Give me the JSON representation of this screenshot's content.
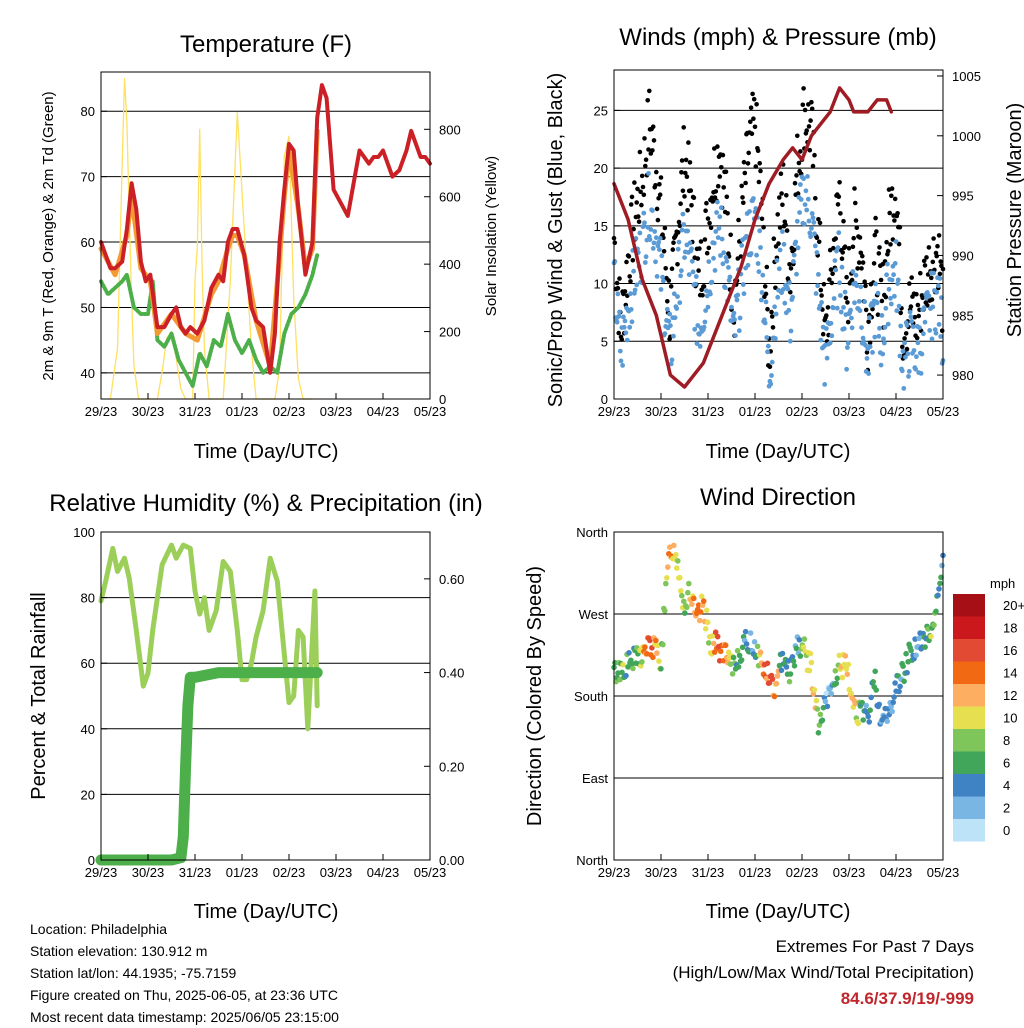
{
  "colors": {
    "temp2m": "#cc2027",
    "temp9m": "#f49a35",
    "dewpoint": "#4daf4a",
    "insolation": "#ffe060",
    "gust": "#000000",
    "wind": "#5b9bd5",
    "pressure": "#a01c24",
    "rh": "#9ccf5a",
    "precip": "#4daf4a",
    "extremes": "#c0262c"
  },
  "time_ticks": [
    "29/23",
    "30/23",
    "31/23",
    "01/23",
    "02/23",
    "03/23",
    "04/23",
    "05/23"
  ],
  "panels": {
    "temperature": {
      "title": "Temperature (F)",
      "xlabel": "Time (Day/UTC)",
      "ylabel_left": "2m & 9m T (Red, Orange) & 2m Td (Green)",
      "ylabel_right": "Solar Insolation (Yellow)",
      "left_ticks": [
        "40",
        "50",
        "60",
        "70",
        "80"
      ],
      "right_ticks": [
        "0",
        "200",
        "400",
        "600",
        "800"
      ]
    },
    "winds": {
      "title": "Winds (mph) & Pressure (mb)",
      "xlabel": "Time (Day/UTC)",
      "ylabel_left": "Sonic/Prop Wind & Gust (Blue, Black)",
      "ylabel_right": "Station Pressure (Maroon)",
      "left_ticks": [
        "0",
        "5",
        "10",
        "15",
        "20",
        "25"
      ],
      "right_ticks": [
        "980",
        "985",
        "990",
        "995",
        "1000",
        "1005"
      ]
    },
    "humidity": {
      "title": "Relative Humidity (%) & Precipitation (in)",
      "xlabel": "Time (Day/UTC)",
      "ylabel_left": "Percent & Total Rainfall",
      "left_ticks": [
        "0",
        "20",
        "40",
        "60",
        "80",
        "100"
      ],
      "right_ticks": [
        "0.00",
        "0.20",
        "0.40",
        "0.60"
      ]
    },
    "direction": {
      "title": "Wind Direction",
      "xlabel": "Time (Day/UTC)",
      "ylabel_left": "Direction (Colored By Speed)",
      "left_ticks": [
        "North",
        "East",
        "South",
        "West",
        "North"
      ],
      "legend_title": "mph",
      "legend_labels": [
        "20+",
        "18",
        "16",
        "14",
        "12",
        "10",
        "8",
        "6",
        "4",
        "2",
        "0"
      ],
      "legend_colors": [
        "#a50f15",
        "#cb181d",
        "#e34a33",
        "#f16913",
        "#fdae61",
        "#e6e050",
        "#7fc65a",
        "#41a55a",
        "#3f83c4",
        "#79b6e3",
        "#bde3f8"
      ]
    }
  },
  "info": {
    "location": "Location: Philadelphia",
    "elevation": "Station elevation: 130.912 m",
    "latlon": "Station lat/lon: 44.1935; -75.7159",
    "created": "Figure created on Thu, 2025-06-05, at 23:36 UTC",
    "timestamp": "Most recent data timestamp: 2025/06/05 23:15:00"
  },
  "extremes": {
    "heading": "Extremes For Past 7 Days",
    "subheading": "(High/Low/Max Wind/Total Precipitation)",
    "values": "84.6/37.9/19/-999"
  },
  "chart_data": [
    {
      "type": "line",
      "title": "Temperature (F)",
      "xlabel": "Time (Day/UTC)",
      "ylabel": "2m & 9m T (Red, Orange) & 2m Td (Green)",
      "y2label": "Solar Insolation (Yellow)",
      "xlim": [
        0,
        7
      ],
      "ylim": [
        36,
        86
      ],
      "y2lim": [
        0,
        970
      ],
      "series": [
        {
          "name": "2m T",
          "axis": "left",
          "x": [
            0,
            0.1,
            0.2,
            0.3,
            0.45,
            0.55,
            0.65,
            0.75,
            0.85,
            0.95,
            1.05,
            1.2,
            1.35,
            1.5,
            1.6,
            1.7,
            1.8,
            1.9,
            2.05,
            2.2,
            2.35,
            2.5,
            2.6,
            2.7,
            2.8,
            2.9,
            3.05,
            3.2,
            3.3,
            3.45,
            3.6,
            3.7,
            3.8,
            3.9,
            4.0,
            4.1,
            4.2,
            4.35,
            4.5,
            4.6,
            4.7,
            4.8,
            4.95,
            5.1,
            5.25,
            5.4,
            5.5,
            5.6,
            5.7,
            5.8,
            5.9,
            6.0,
            6.1,
            6.2,
            6.35,
            6.5,
            6.6,
            6.7,
            6.8,
            6.9,
            7.0
          ],
          "y": [
            60,
            58,
            56,
            56,
            57,
            62,
            69,
            65,
            57,
            54,
            55,
            47,
            47,
            49,
            50,
            47,
            46,
            47,
            46,
            48,
            53,
            55,
            54,
            60,
            62,
            62,
            58,
            50,
            48,
            47,
            40,
            46,
            60,
            68,
            75,
            74,
            65,
            55,
            60,
            79,
            84,
            82,
            68,
            66,
            64,
            70,
            74,
            73,
            72,
            73,
            73,
            74,
            72,
            70,
            71,
            74,
            77,
            75,
            73,
            73,
            72
          ]
        },
        {
          "name": "9m T",
          "axis": "left",
          "x": [
            0,
            0.3,
            0.55,
            0.65,
            0.85,
            1.05,
            1.2,
            1.5,
            1.8,
            2.05,
            2.35,
            2.5,
            2.7,
            2.8,
            2.9,
            3.05,
            3.3,
            3.6,
            3.8,
            3.9,
            4.0,
            4.2,
            4.35,
            4.5,
            4.6
          ],
          "y": [
            59,
            55,
            61,
            67,
            56,
            54,
            46,
            49,
            46,
            45,
            52,
            54,
            59,
            61,
            61,
            58,
            48,
            41,
            58,
            67,
            74,
            65,
            56,
            59,
            77
          ]
        },
        {
          "name": "2m Td",
          "axis": "left",
          "x": [
            0,
            0.15,
            0.3,
            0.45,
            0.55,
            0.7,
            0.85,
            1.0,
            1.1,
            1.2,
            1.35,
            1.5,
            1.65,
            1.8,
            1.95,
            2.1,
            2.25,
            2.4,
            2.55,
            2.7,
            2.85,
            3.0,
            3.15,
            3.3,
            3.45,
            3.6,
            3.75,
            3.9,
            4.05,
            4.2,
            4.35,
            4.5,
            4.6
          ],
          "y": [
            54,
            52,
            53,
            54,
            55,
            50,
            49,
            49,
            54,
            45,
            44,
            46,
            42,
            40,
            38,
            43,
            41,
            45,
            44,
            49,
            45,
            43,
            45,
            42,
            40,
            41,
            40,
            46,
            49,
            50,
            52,
            55,
            58
          ]
        },
        {
          "name": "Solar Insolation",
          "axis": "right",
          "x": [
            0.2,
            0.35,
            0.45,
            0.5,
            0.55,
            0.6,
            0.65,
            0.7,
            0.8,
            0.9,
            1.05,
            1.2,
            1.3,
            1.4,
            1.5,
            1.6,
            1.7,
            1.8,
            1.95,
            2.0,
            2.05,
            2.1,
            2.15,
            2.2,
            2.3,
            2.5,
            2.6,
            2.75,
            2.9,
            3.05,
            3.2,
            3.3,
            3.4,
            3.5,
            3.6,
            3.7,
            3.8,
            3.9,
            4.0,
            4.1,
            4.2,
            4.3,
            4.5
          ],
          "y": [
            0,
            150,
            700,
            950,
            820,
            550,
            300,
            100,
            0,
            0,
            0,
            0,
            80,
            180,
            200,
            120,
            30,
            0,
            0,
            350,
            450,
            800,
            400,
            150,
            0,
            0,
            0,
            350,
            850,
            500,
            150,
            0,
            0,
            0,
            0,
            0,
            90,
            720,
            780,
            300,
            60,
            0,
            0
          ]
        }
      ]
    },
    {
      "type": "scatter",
      "title": "Winds (mph) & Pressure (mb)",
      "xlabel": "Time (Day/UTC)",
      "ylabel": "Sonic/Prop Wind & Gust (Blue, Black)",
      "y2label": "Station Pressure (Maroon)",
      "xlim": [
        0,
        7
      ],
      "ylim": [
        0,
        28.5
      ],
      "y2lim": [
        978,
        1005.5
      ],
      "series": [
        {
          "name": "Wind",
          "axis": "left",
          "x": [
            0,
            0.15,
            0.3,
            0.45,
            0.6,
            0.75,
            0.9,
            1.05,
            1.2,
            1.35,
            1.5,
            1.65,
            1.8,
            1.95,
            2.1,
            2.25,
            2.4,
            2.55,
            2.7,
            2.85,
            3.0,
            3.15,
            3.3,
            3.45,
            3.6,
            3.75,
            3.9,
            4.05,
            4.2,
            4.35,
            4.5,
            4.65,
            4.8,
            4.95,
            5.1,
            5.25,
            5.4,
            5.55,
            5.7,
            5.85,
            6.0,
            6.15,
            6.3,
            6.45,
            6.6,
            6.75,
            6.9,
            7.0
          ],
          "y": [
            10,
            4,
            8,
            11,
            13,
            17,
            14,
            9,
            4,
            10,
            14,
            11,
            6,
            9,
            13,
            15,
            11,
            5,
            10,
            14,
            16,
            11,
            2,
            9,
            12,
            7,
            14,
            18,
            16,
            9,
            3,
            8,
            12,
            5,
            10,
            9,
            3,
            8,
            5,
            10,
            11,
            3,
            5,
            4,
            6,
            8,
            9,
            5
          ]
        },
        {
          "name": "Gust",
          "axis": "left",
          "x": [
            0,
            0.15,
            0.3,
            0.45,
            0.6,
            0.75,
            0.9,
            1.05,
            1.2,
            1.35,
            1.5,
            1.65,
            1.8,
            1.95,
            2.1,
            2.25,
            2.4,
            2.55,
            2.7,
            2.85,
            3.0,
            3.15,
            3.3,
            3.45,
            3.6,
            3.75,
            3.9,
            4.05,
            4.2,
            4.35,
            4.5,
            4.65,
            4.8,
            4.95,
            5.1,
            5.25,
            5.4,
            5.55,
            5.7,
            5.85,
            6.0,
            6.15,
            6.3,
            6.45,
            6.6,
            6.75,
            6.9,
            7.0
          ],
          "y": [
            14,
            6,
            12,
            16,
            19,
            24,
            20,
            14,
            7,
            15,
            21,
            17,
            10,
            14,
            19,
            22,
            16,
            8,
            15,
            21,
            24,
            16,
            4,
            14,
            18,
            11,
            20,
            25,
            23,
            14,
            5,
            12,
            18,
            8,
            15,
            14,
            6,
            13,
            8,
            15,
            19,
            6,
            8,
            7,
            10,
            12,
            13,
            8
          ]
        },
        {
          "name": "Pressure",
          "axis": "right",
          "x": [
            0,
            0.3,
            0.6,
            0.9,
            1.2,
            1.5,
            1.7,
            1.9,
            2.1,
            2.4,
            2.7,
            3.0,
            3.3,
            3.6,
            3.8,
            4.0,
            4.2,
            4.4,
            4.6,
            4.8,
            5.0,
            5.1,
            5.2,
            5.4,
            5.6,
            5.8,
            5.9
          ],
          "y": [
            996,
            993,
            988,
            985,
            980,
            979,
            980,
            981,
            983,
            986,
            989,
            993,
            996,
            998,
            999,
            998,
            1000,
            1001,
            1002,
            1004,
            1003,
            1002,
            1002,
            1002,
            1003,
            1003,
            1002
          ]
        }
      ]
    },
    {
      "type": "line",
      "title": "Relative Humidity (%) & Precipitation (in)",
      "xlabel": "Time (Day/UTC)",
      "ylabel": "Percent & Total Rainfall",
      "xlim": [
        0,
        7
      ],
      "ylim": [
        0,
        100
      ],
      "y2lim": [
        0,
        0.7
      ],
      "series": [
        {
          "name": "RH",
          "axis": "left",
          "x": [
            0,
            0.1,
            0.25,
            0.35,
            0.5,
            0.6,
            0.75,
            0.9,
            1.0,
            1.1,
            1.3,
            1.5,
            1.6,
            1.75,
            1.9,
            2.0,
            2.1,
            2.2,
            2.3,
            2.45,
            2.6,
            2.75,
            2.9,
            3.0,
            3.1,
            3.2,
            3.3,
            3.45,
            3.6,
            3.75,
            3.85,
            4.0,
            4.1,
            4.2,
            4.3,
            4.4,
            4.55,
            4.6
          ],
          "y": [
            79,
            85,
            95,
            88,
            92,
            86,
            70,
            53,
            57,
            70,
            90,
            96,
            92,
            96,
            95,
            82,
            75,
            80,
            70,
            76,
            91,
            88,
            70,
            55,
            55,
            60,
            68,
            76,
            92,
            85,
            70,
            48,
            50,
            70,
            68,
            40,
            82,
            47
          ]
        },
        {
          "name": "Total Rainfall",
          "axis": "right",
          "x": [
            0,
            1.5,
            1.7,
            1.75,
            1.8,
            1.85,
            1.9,
            2.0,
            2.5,
            3.0,
            4.0,
            4.6
          ],
          "y": [
            0,
            0,
            0.005,
            0.05,
            0.2,
            0.33,
            0.39,
            0.39,
            0.4,
            0.4,
            0.4,
            0.4
          ]
        }
      ]
    },
    {
      "type": "scatter",
      "title": "Wind Direction",
      "xlabel": "Time (Day/UTC)",
      "ylabel": "Direction (Colored By Speed)",
      "xlim": [
        0,
        7
      ],
      "y_categories": [
        "North",
        "East",
        "South",
        "West",
        "North"
      ],
      "ylim": [
        0,
        360
      ],
      "series": [
        {
          "name": "Direction",
          "x": [
            0,
            0.15,
            0.3,
            0.45,
            0.6,
            0.75,
            0.9,
            1.0,
            1.1,
            1.2,
            1.35,
            1.5,
            1.6,
            1.75,
            1.9,
            2.05,
            2.2,
            2.35,
            2.5,
            2.7,
            2.85,
            3.0,
            3.15,
            3.3,
            3.45,
            3.6,
            3.75,
            3.9,
            4.05,
            4.2,
            4.35,
            4.5,
            4.65,
            4.8,
            4.95,
            5.1,
            5.25,
            5.4,
            5.55,
            5.7,
            5.85,
            6.0,
            6.15,
            6.3,
            6.45,
            6.6,
            6.75,
            6.9,
            7.0
          ],
          "y": [
            205,
            210,
            215,
            220,
            225,
            235,
            230,
            220,
            290,
            345,
            330,
            275,
            300,
            260,
            280,
            240,
            235,
            225,
            210,
            230,
            240,
            235,
            215,
            200,
            185,
            230,
            205,
            240,
            230,
            210,
            145,
            170,
            190,
            215,
            210,
            170,
            160,
            155,
            200,
            150,
            160,
            190,
            205,
            230,
            235,
            240,
            250,
            290,
            345
          ],
          "speed": [
            6,
            8,
            5,
            7,
            10,
            16,
            12,
            7,
            9,
            14,
            10,
            8,
            10,
            14,
            12,
            8,
            16,
            14,
            9,
            5,
            4,
            3,
            13,
            16,
            12,
            4,
            6,
            3,
            10,
            12,
            8,
            2,
            3,
            9,
            10,
            12,
            5,
            4,
            6,
            3,
            2,
            4,
            5,
            5,
            3,
            4,
            8,
            6,
            3
          ]
        }
      ]
    }
  ]
}
